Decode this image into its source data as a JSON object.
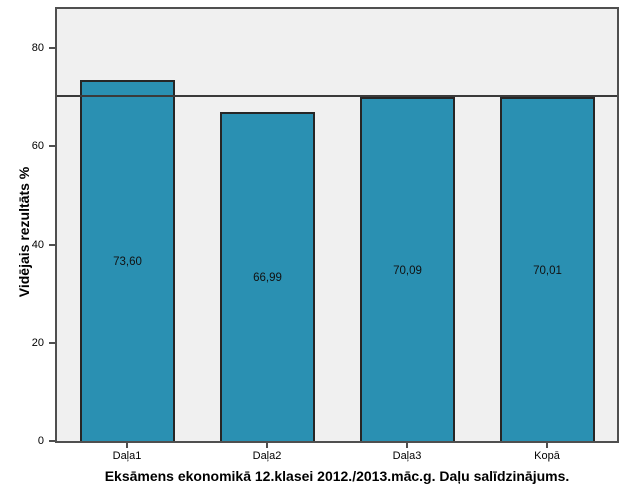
{
  "chart_data": {
    "type": "bar",
    "title": "Eksāmens ekonomikā 12.klasei 2012./2013.māc.g. Daļu salīdzinājums.",
    "ylabel": "Vidējais rezultāts %",
    "xlabel": "",
    "categories": [
      "Daļa1",
      "Daļa2",
      "Daļa3",
      "Kopā"
    ],
    "values": [
      73.6,
      66.99,
      70.09,
      70.01
    ],
    "value_labels": [
      "73,60",
      "66,99",
      "70,09",
      "70,01"
    ],
    "yticks": [
      0,
      20,
      40,
      60,
      80
    ],
    "ylim": [
      0,
      88
    ],
    "reference_line": 70.2,
    "grid": false,
    "legend": null,
    "colors": {
      "bar_fill": "#2a90b2",
      "bar_border": "#262626",
      "plot_bg": "#f0f0f0",
      "frame_border": "#4f4f4f",
      "reference_line": "#3a3a3a",
      "background": "#ffffff",
      "text": "#000000"
    }
  }
}
